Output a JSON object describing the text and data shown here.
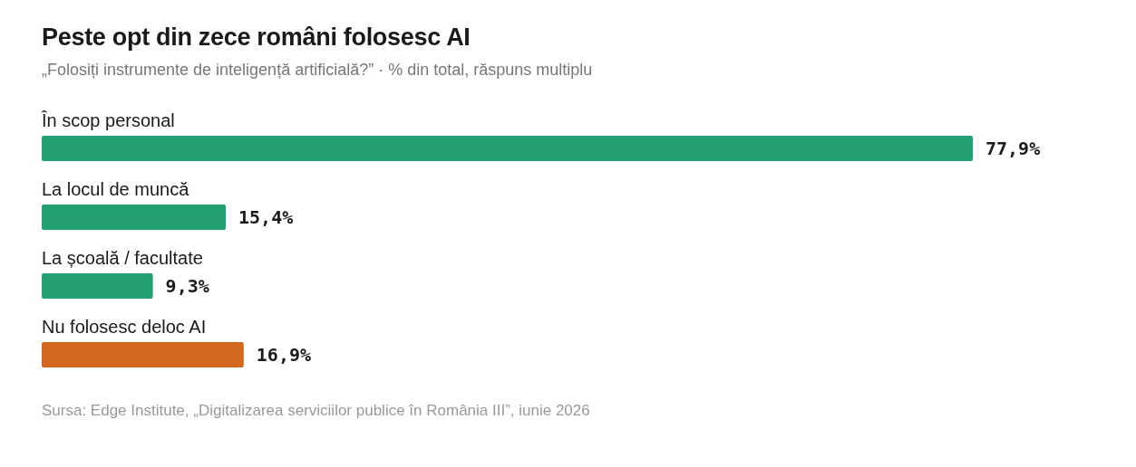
{
  "chart_data": {
    "type": "bar",
    "orientation": "horizontal",
    "title": "Peste opt din zece români folosesc AI",
    "subtitle": "„Folosiți instrumente de inteligență artificială?” · % din total, răspuns multiplu",
    "categories": [
      "În scop personal",
      "La locul de muncă",
      "La școală / facultate",
      "Nu folosesc deloc AI"
    ],
    "values": [
      77.9,
      15.4,
      9.3,
      16.9
    ],
    "colors": [
      "#23a06f",
      "#23a06f",
      "#23a06f",
      "#d2691e"
    ],
    "value_labels": [
      "77,9%",
      "15,4%",
      "9,3%",
      "16,9%"
    ],
    "annotations": [
      "Sursa: Edge Institute, „Digitalizarea serviciilor publice în România III”, iunie 2026"
    ],
    "grid": false,
    "legend": false
  }
}
